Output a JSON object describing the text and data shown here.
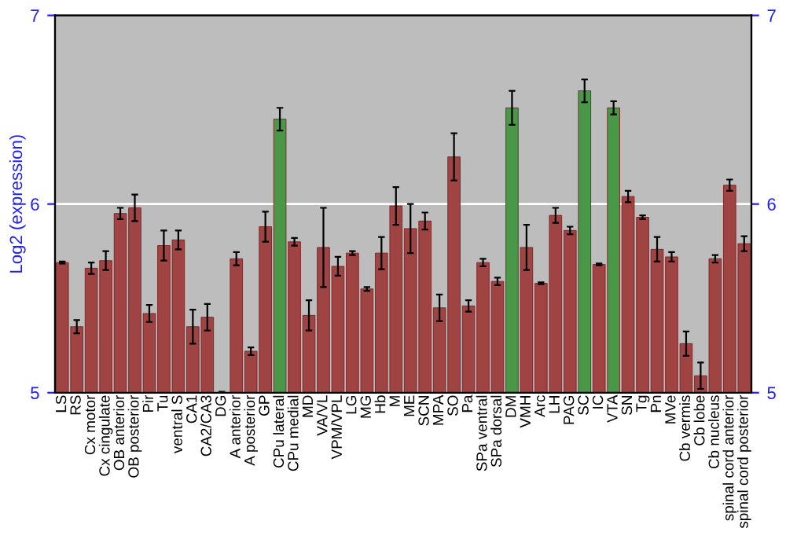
{
  "chart_data": {
    "type": "bar",
    "ylabel": "Log2 (expression)",
    "categories": [
      "LS",
      "RS",
      "Cx motor",
      "Cx cingulate",
      "OB anterior",
      "OB posterior",
      "Pir",
      "Tu",
      "ventral S",
      "CA1",
      "CA2/CA3",
      "DG",
      "A anterior",
      "A posterior",
      "GP",
      "CPu lateral",
      "CPu medial",
      "MD",
      "VA/VL",
      "VPM/VPL",
      "LG",
      "MG",
      "Hb",
      "M",
      "ME",
      "SCN",
      "MPA",
      "SO",
      "Pa",
      "SPa ventral",
      "SPa dorsal",
      "DM",
      "VMH",
      "Arc",
      "LH",
      "PAG",
      "SC",
      "IC",
      "VTA",
      "SN",
      "Tg",
      "Pn",
      "MVe",
      "Cb vermis",
      "Cb lobe",
      "Cb nucleus",
      "spinal cord anterior",
      "spinal cord posterior"
    ],
    "values": [
      5.69,
      5.35,
      5.66,
      5.7,
      5.95,
      5.98,
      5.42,
      5.78,
      5.81,
      5.35,
      5.4,
      5.0,
      5.71,
      5.22,
      5.88,
      6.45,
      5.8,
      5.41,
      5.77,
      5.67,
      5.74,
      5.55,
      5.74,
      5.99,
      5.87,
      5.91,
      5.45,
      6.25,
      5.46,
      5.69,
      5.59,
      6.51,
      5.77,
      5.58,
      5.94,
      5.86,
      6.6,
      5.68,
      6.51,
      6.04,
      5.93,
      5.76,
      5.72,
      5.26,
      5.09,
      5.71,
      6.1,
      5.79
    ],
    "errors": [
      0.005,
      0.035,
      0.03,
      0.05,
      0.03,
      0.07,
      0.045,
      0.08,
      0.05,
      0.09,
      0.07,
      0.005,
      0.035,
      0.02,
      0.08,
      0.06,
      0.02,
      0.08,
      0.21,
      0.05,
      0.01,
      0.01,
      0.085,
      0.1,
      0.13,
      0.045,
      0.07,
      0.125,
      0.03,
      0.02,
      0.02,
      0.09,
      0.12,
      0.005,
      0.04,
      0.02,
      0.06,
      0.005,
      0.035,
      0.03,
      0.01,
      0.065,
      0.025,
      0.065,
      0.07,
      0.02,
      0.03,
      0.04
    ],
    "colors": [
      "#b03434",
      "#b03434",
      "#b03434",
      "#b03434",
      "#b03434",
      "#b03434",
      "#b03434",
      "#b03434",
      "#b03434",
      "#b03434",
      "#b03434",
      "#b03434",
      "#b03434",
      "#b03434",
      "#b03434",
      "#3aa63a",
      "#b03434",
      "#b03434",
      "#b03434",
      "#b03434",
      "#b03434",
      "#b03434",
      "#b03434",
      "#b03434",
      "#b03434",
      "#b03434",
      "#b03434",
      "#b03434",
      "#b03434",
      "#b03434",
      "#b03434",
      "#3aa63a",
      "#b03434",
      "#b03434",
      "#b03434",
      "#b03434",
      "#3aa63a",
      "#b03434",
      "#3aa63a",
      "#b03434",
      "#b03434",
      "#b03434",
      "#b03434",
      "#b03434",
      "#b03434",
      "#b03434",
      "#b03434",
      "#b03434"
    ],
    "ylim": [
      5,
      7
    ],
    "yticks": [
      5,
      6,
      7
    ],
    "y2lim": [
      5,
      7
    ],
    "y2ticks": [
      5,
      6,
      7
    ],
    "grid": "y"
  }
}
